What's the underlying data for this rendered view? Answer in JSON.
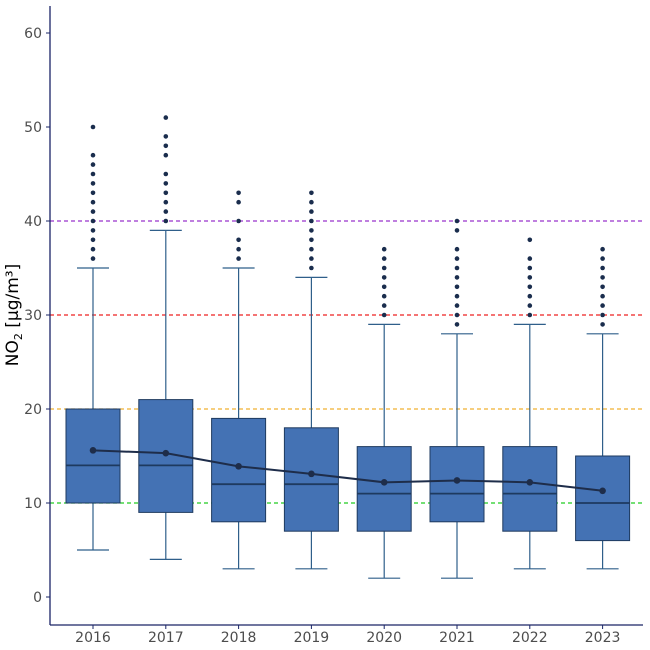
{
  "chart_data": {
    "type": "box",
    "xlabel": "",
    "ylabel_main": "NO",
    "ylabel_sub": "2",
    "ylabel_unit": " [µg/m³]",
    "ylim": [
      -3,
      63
    ],
    "yticks": [
      0,
      10,
      20,
      30,
      40,
      50,
      60
    ],
    "grid": false,
    "categories": [
      "2016",
      "2017",
      "2018",
      "2019",
      "2020",
      "2021",
      "2022",
      "2023"
    ],
    "boxes": [
      {
        "year": "2016",
        "whisker_low": 5,
        "q1": 10,
        "median": 14,
        "q3": 20,
        "whisker_high": 35,
        "mean": 15.6,
        "outliers": [
          36,
          37,
          38,
          39,
          40,
          41,
          42,
          43,
          44,
          45,
          46,
          47,
          50
        ]
      },
      {
        "year": "2017",
        "whisker_low": 4,
        "q1": 9,
        "median": 14,
        "q3": 21,
        "whisker_high": 39,
        "mean": 15.3,
        "outliers": [
          40,
          41,
          42,
          43,
          44,
          45,
          47,
          48,
          49,
          51
        ]
      },
      {
        "year": "2018",
        "whisker_low": 3,
        "q1": 8,
        "median": 12,
        "q3": 19,
        "whisker_high": 35,
        "mean": 13.9,
        "outliers": [
          36,
          37,
          38,
          40,
          42,
          43
        ]
      },
      {
        "year": "2019",
        "whisker_low": 3,
        "q1": 7,
        "median": 12,
        "q3": 18,
        "whisker_high": 34,
        "mean": 13.1,
        "outliers": [
          35,
          36,
          37,
          38,
          39,
          40,
          41,
          42,
          43
        ]
      },
      {
        "year": "2020",
        "whisker_low": 2,
        "q1": 7,
        "median": 11,
        "q3": 16,
        "whisker_high": 29,
        "mean": 12.2,
        "outliers": [
          30,
          31,
          32,
          33,
          34,
          35,
          36,
          37
        ]
      },
      {
        "year": "2021",
        "whisker_low": 2,
        "q1": 8,
        "median": 11,
        "q3": 16,
        "whisker_high": 28,
        "mean": 12.4,
        "outliers": [
          29,
          30,
          31,
          32,
          33,
          34,
          35,
          36,
          37,
          39,
          40
        ]
      },
      {
        "year": "2022",
        "whisker_low": 3,
        "q1": 7,
        "median": 11,
        "q3": 16,
        "whisker_high": 29,
        "mean": 12.2,
        "outliers": [
          30,
          31,
          32,
          33,
          34,
          35,
          36,
          38
        ]
      },
      {
        "year": "2023",
        "whisker_low": 3,
        "q1": 6,
        "median": 10,
        "q3": 15,
        "whisker_high": 28,
        "mean": 11.3,
        "outliers": [
          29,
          30,
          31,
          32,
          33,
          34,
          35,
          36,
          37
        ]
      }
    ],
    "reference_lines": [
      {
        "value": 10,
        "color": "#22cc22"
      },
      {
        "value": 20,
        "color": "#f0b030"
      },
      {
        "value": 30,
        "color": "#ee2222"
      },
      {
        "value": 40,
        "color": "#9933cc"
      }
    ],
    "colors": {
      "box_fill": "#4472b4",
      "box_stroke": "#1e3a5f",
      "whisker": "#2f5f8a",
      "outlier": "#1a2d4d",
      "mean_line": "#1e2d4a",
      "axis": "#1a2466"
    }
  }
}
